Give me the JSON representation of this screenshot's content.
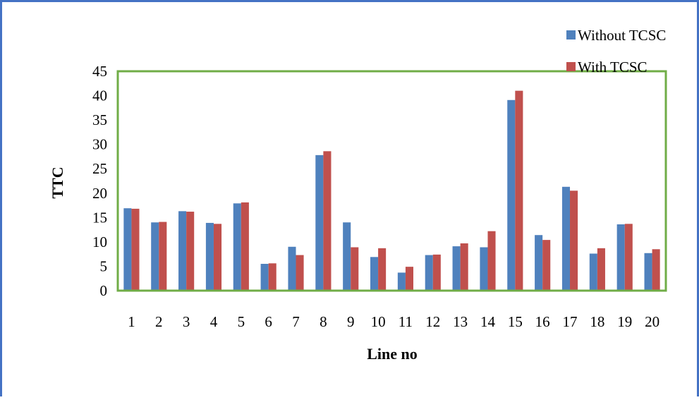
{
  "chart_data": {
    "type": "bar",
    "title": "",
    "xlabel": "Line no",
    "ylabel": "TTC",
    "ylim": [
      0,
      45
    ],
    "yticks": [
      "0",
      "5",
      "10",
      "15",
      "20",
      "25",
      "30",
      "35",
      "40",
      "45"
    ],
    "categories": [
      "1",
      "2",
      "3",
      "4",
      "5",
      "6",
      "7",
      "8",
      "9",
      "10",
      "11",
      "12",
      "13",
      "14",
      "15",
      "16",
      "17",
      "18",
      "19",
      "20"
    ],
    "series": [
      {
        "name": "Without TCSC",
        "color": "#4f81bd",
        "values": [
          16.9,
          14.0,
          16.3,
          13.9,
          17.9,
          5.5,
          9.0,
          27.8,
          14.0,
          6.9,
          3.7,
          7.3,
          9.1,
          8.9,
          39.1,
          11.4,
          21.3,
          7.6,
          13.6,
          7.7
        ]
      },
      {
        "name": "With TCSC",
        "color": "#c0504d",
        "values": [
          16.8,
          14.1,
          16.2,
          13.7,
          18.1,
          5.6,
          7.3,
          28.6,
          8.9,
          8.7,
          4.9,
          7.4,
          9.7,
          12.2,
          41.0,
          10.4,
          20.5,
          8.7,
          13.7,
          8.5
        ]
      }
    ],
    "plot_border_color": "#70ad47",
    "legend_position": "top-right",
    "grid": false
  }
}
